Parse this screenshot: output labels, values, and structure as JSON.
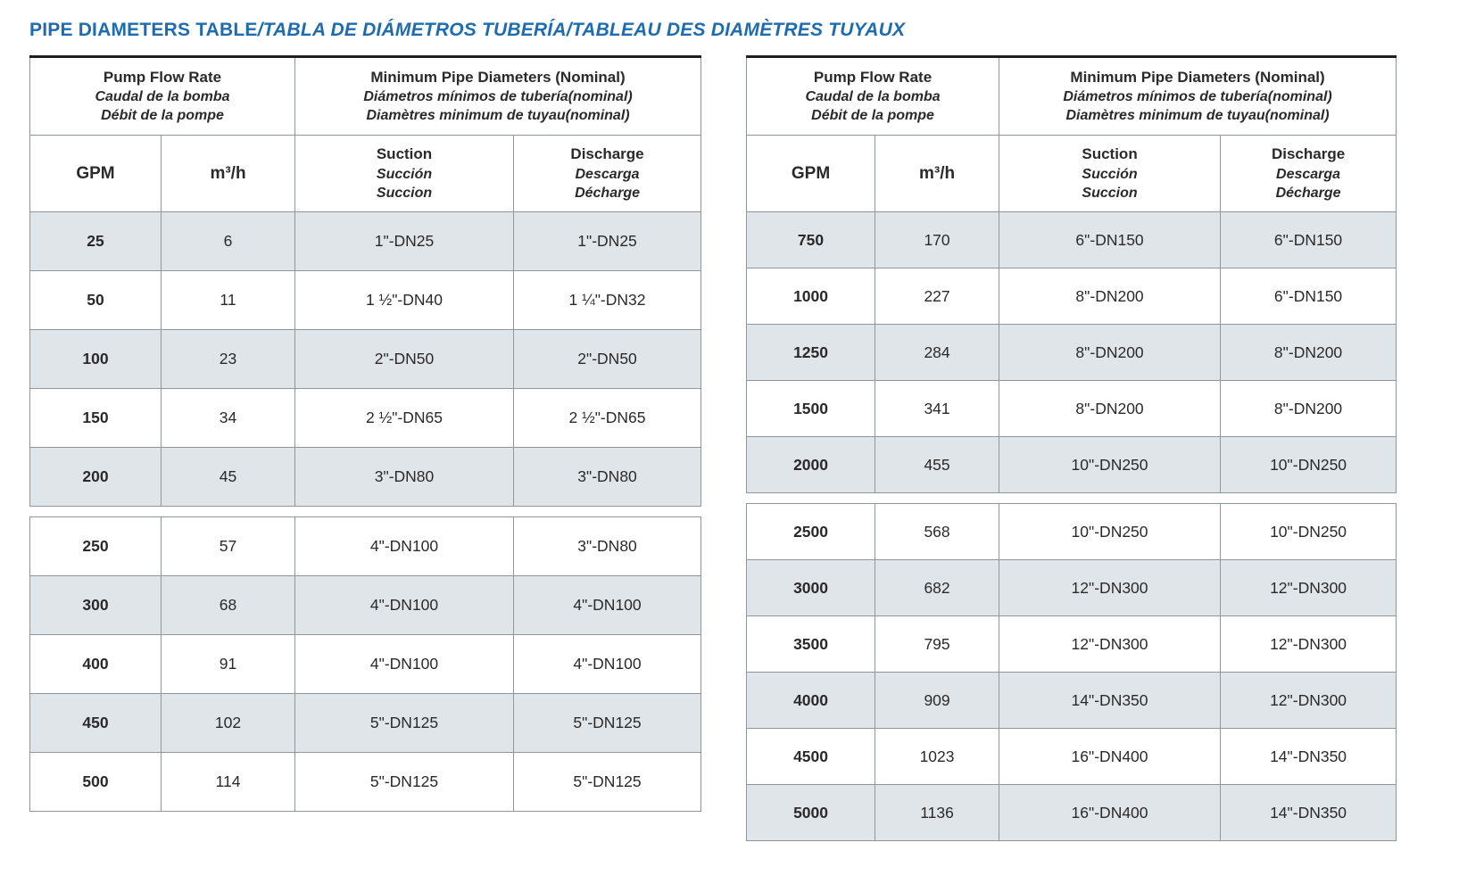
{
  "title": {
    "en": "PIPE DIAMETERS TABLE",
    "translations": "/TABLA DE DIÁMETROS TUBERÍA/TABLEAU DES DIAMÈTRES TUYAUX"
  },
  "colors": {
    "title_blue": "#1e6cae",
    "row_shade": "#e0e5e9",
    "border_gray": "#8f979d",
    "border_dark": "#1f1f1f"
  },
  "header": {
    "flow": [
      "Pump Flow Rate",
      "Caudal de la bomba",
      "Débit de la pompe"
    ],
    "diameters": [
      "Minimum Pipe Diameters (Nominal)",
      "Diámetros mínimos de tubería(nominal)",
      "Diamètres minimum de tuyau(nominal)"
    ],
    "gpm": "GPM",
    "m3h": "m³/h",
    "suction": [
      "Suction",
      "Succión",
      "Succion"
    ],
    "discharge": [
      "Discharge",
      "Descarga",
      "Décharge"
    ]
  },
  "left_table": {
    "sections": [
      {
        "rows": [
          [
            "25",
            "6",
            "1\"-DN25",
            "1\"-DN25"
          ],
          [
            "50",
            "11",
            "1 ½\"-DN40",
            "1 ¼\"-DN32"
          ],
          [
            "100",
            "23",
            "2\"-DN50",
            "2\"-DN50"
          ],
          [
            "150",
            "34",
            "2 ½\"-DN65",
            "2 ½\"-DN65"
          ],
          [
            "200",
            "45",
            "3\"-DN80",
            "3\"-DN80"
          ]
        ]
      },
      {
        "rows": [
          [
            "250",
            "57",
            "4\"-DN100",
            "3\"-DN80"
          ],
          [
            "300",
            "68",
            "4\"-DN100",
            "4\"-DN100"
          ],
          [
            "400",
            "91",
            "4\"-DN100",
            "4\"-DN100"
          ],
          [
            "450",
            "102",
            "5\"-DN125",
            "5\"-DN125"
          ],
          [
            "500",
            "114",
            "5\"-DN125",
            "5\"-DN125"
          ]
        ]
      }
    ]
  },
  "right_table": {
    "sections": [
      {
        "rows": [
          [
            "750",
            "170",
            "6\"-DN150",
            "6\"-DN150"
          ],
          [
            "1000",
            "227",
            "8\"-DN200",
            "6\"-DN150"
          ],
          [
            "1250",
            "284",
            "8\"-DN200",
            "8\"-DN200"
          ],
          [
            "1500",
            "341",
            "8\"-DN200",
            "8\"-DN200"
          ],
          [
            "2000",
            "455",
            "10\"-DN250",
            "10\"-DN250"
          ]
        ]
      },
      {
        "rows": [
          [
            "2500",
            "568",
            "10\"-DN250",
            "10\"-DN250"
          ],
          [
            "3000",
            "682",
            "12\"-DN300",
            "12\"-DN300"
          ],
          [
            "3500",
            "795",
            "12\"-DN300",
            "12\"-DN300"
          ],
          [
            "4000",
            "909",
            "14\"-DN350",
            "12\"-DN300"
          ],
          [
            "4500",
            "1023",
            "16\"-DN400",
            "14\"-DN350"
          ],
          [
            "5000",
            "1136",
            "16\"-DN400",
            "14\"-DN350"
          ]
        ]
      }
    ]
  }
}
